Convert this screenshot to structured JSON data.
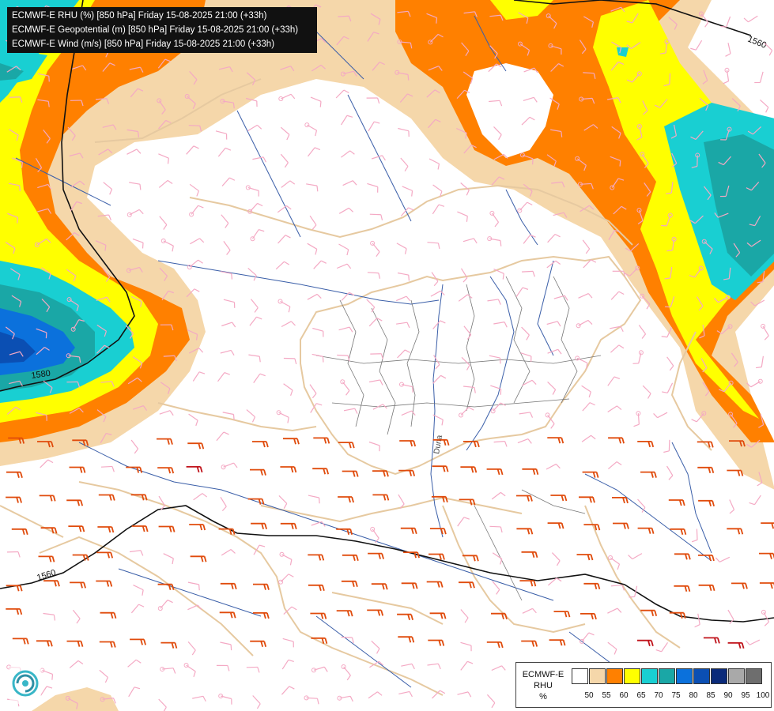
{
  "header": {
    "line1": "ECMWF-E RHU (%) [850 hPa] Friday 15-08-2025 21:00 (+33h)",
    "line2": "ECMWF-E Geopotential (m) [850 hPa] Friday 15-08-2025 21:00 (+33h)",
    "line3": "ECMWF-E Wind (m/s) [850 hPa] Friday 15-08-2025 21:00 (+33h)"
  },
  "contour_labels": [
    "1560",
    "1580",
    "1560"
  ],
  "river_label": "Duna",
  "legend": {
    "title_line1": "ECMWF-E",
    "title_line2": "RHU",
    "unit": "%",
    "ticks": [
      "50",
      "55",
      "60",
      "65",
      "70",
      "75",
      "80",
      "85",
      "90",
      "95",
      "100"
    ],
    "colors": [
      "#ffffff",
      "#f5d7aa",
      "#ff8000",
      "#ffff00",
      "#19cfd2",
      "#1aa7a6",
      "#0b71dc",
      "#0b4fb3",
      "#0a2a7a",
      "#a9a9a9",
      "#6e6e6e"
    ]
  },
  "colors": {
    "rhu_55": "#f5d7aa",
    "rhu_60": "#ff8000",
    "rhu_65": "#ffff00",
    "rhu_70": "#19cfd2",
    "rhu_75": "#1aa7a6",
    "rhu_80": "#0b71dc",
    "borders": "#e6c9a0",
    "rivers": "#3a5ea8",
    "regions": "#666666",
    "geopotential": "#111111",
    "wind_light": "#f4a9c4",
    "wind_strong": "#e04b0c",
    "wind_strongest": "#c0141c"
  },
  "logo_icon": "ecmwf-swirl-icon"
}
